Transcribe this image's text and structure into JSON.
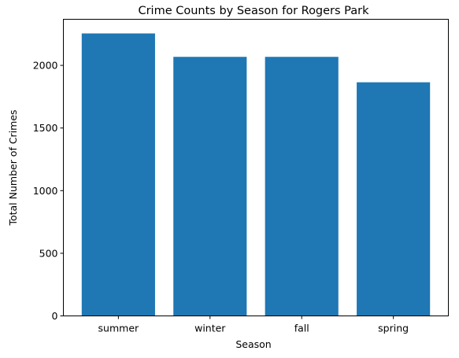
{
  "chart_data": {
    "type": "bar",
    "title": "Crime Counts by Season for Rogers Park",
    "xlabel": "Season",
    "ylabel": "Total Number of Crimes",
    "categories": [
      "summer",
      "winter",
      "fall",
      "spring"
    ],
    "values": [
      2255,
      2068,
      2068,
      1865
    ],
    "ylim": [
      0,
      2368
    ],
    "yticks": [
      "0",
      "500",
      "1000",
      "1500",
      "2000"
    ],
    "bar_color": "#1f77b4",
    "grid": false,
    "legend": "none"
  }
}
